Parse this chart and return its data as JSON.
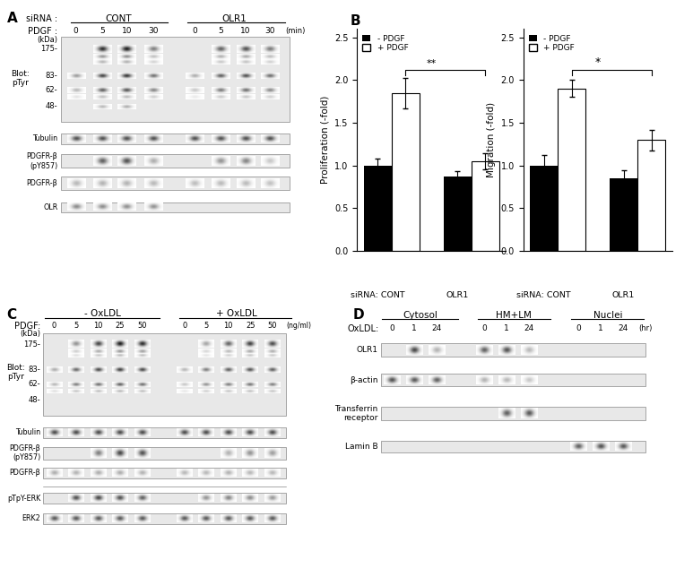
{
  "panel_A": {
    "label": "A",
    "sirna_label": "siRNA :",
    "cont_label": "CONT",
    "olr1_label": "OLR1",
    "pdgf_label": "PDGF :",
    "pdgf_times": [
      "0",
      "5",
      "10",
      "30",
      "0",
      "5",
      "10",
      "30"
    ],
    "pdgf_unit": "(min)",
    "kda_label": "(kDa)",
    "mw_markers": [
      "175-",
      "83-",
      "62-",
      "48-"
    ],
    "blot_label": "Blot:\npTyr",
    "row_labels": [
      "Tubulin",
      "PDGFR-β\n(pY857)",
      "PDGFR-β",
      "OLR"
    ]
  },
  "panel_B": {
    "label": "B",
    "prolif": {
      "categories": [
        "CONT",
        "OLR1"
      ],
      "minus_pdgf": [
        1.0,
        0.87
      ],
      "plus_pdgf": [
        1.85,
        1.05
      ],
      "minus_err": [
        0.08,
        0.07
      ],
      "plus_err": [
        0.18,
        0.09
      ],
      "ylabel": "Proliferation (-fold)",
      "significance": "**",
      "ylim": [
        0,
        2.6
      ],
      "yticks": [
        0.0,
        0.5,
        1.0,
        1.5,
        2.0,
        2.5
      ]
    },
    "migr": {
      "categories": [
        "CONT",
        "OLR1"
      ],
      "minus_pdgf": [
        1.0,
        0.85
      ],
      "plus_pdgf": [
        1.9,
        1.3
      ],
      "minus_err": [
        0.12,
        0.1
      ],
      "plus_err": [
        0.1,
        0.12
      ],
      "ylabel": "Migration (-fold)",
      "significance": "*",
      "ylim": [
        0,
        2.6
      ],
      "yticks": [
        0.0,
        0.5,
        1.0,
        1.5,
        2.0,
        2.5
      ]
    },
    "legend_minus": "- PDGF",
    "legend_plus": "+ PDGF",
    "bar_width": 0.35
  },
  "panel_C": {
    "label": "C",
    "oxldl_minus": "- OxLDL",
    "oxldl_plus": "+ OxLDL",
    "pdgf_label": "PDGF:",
    "pdgf_concs": [
      "0",
      "5",
      "10",
      "25",
      "50",
      "0",
      "5",
      "10",
      "25",
      "50"
    ],
    "pdgf_unit": "(ng/ml)",
    "kda_label": "(kDa)",
    "mw_markers": [
      "175-",
      "83-",
      "62-",
      "48-"
    ],
    "blot_label": "Blot:\npTyr",
    "row_labels": [
      "Tubulin",
      "PDGFR-β\n(pY857)",
      "PDGFR-β",
      "pTpY-ERK",
      "ERK2"
    ]
  },
  "panel_D": {
    "label": "D",
    "fractions": [
      "Cytosol",
      "HM+LM",
      "Nuclei"
    ],
    "oxldl_label": "OxLDL:",
    "time_points": [
      "0",
      "1",
      "24",
      "0",
      "1",
      "24",
      "0",
      "1",
      "24"
    ],
    "time_unit": "(hr)",
    "row_labels": [
      "OLR1",
      "β-actin",
      "Transferrin\nreceptor",
      "Lamin B"
    ]
  }
}
